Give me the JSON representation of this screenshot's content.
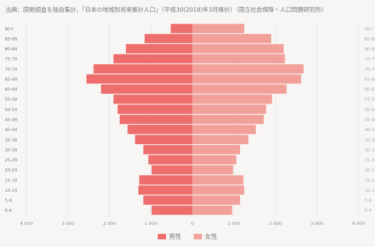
{
  "source_note": "出典：国勢調査を独自集計、「日本の地域別将来推計人口」（平成30(2018)年3月推計）（国立社会保障・人口問題研究所）",
  "chart_data": {
    "type": "bar",
    "orientation": "horizontal-population-pyramid",
    "categories": [
      "0-4",
      "5-9",
      "10-14",
      "15-19",
      "20-24",
      "25-29",
      "30-34",
      "35-39",
      "40-44",
      "45-49",
      "50-54",
      "55-59",
      "60-64",
      "65-69",
      "70-74",
      "75-79",
      "80-84",
      "85-89",
      "90+"
    ],
    "series": [
      {
        "name": "男性",
        "color": "#ee6e6e",
        "values": [
          980,
          1180,
          1300,
          1280,
          980,
          1060,
          1180,
          1380,
          1560,
          1750,
          1800,
          1900,
          2200,
          2550,
          2380,
          1900,
          1600,
          1150,
          520
        ]
      },
      {
        "name": "女性",
        "color": "#f2a19a",
        "values": [
          960,
          1150,
          1250,
          1230,
          980,
          1060,
          1150,
          1350,
          1530,
          1720,
          1780,
          1920,
          2270,
          2620,
          2680,
          2230,
          2200,
          1900,
          1250
        ]
      }
    ],
    "xlim": [
      -4000,
      4000
    ],
    "x_ticks": [
      -4000,
      -3000,
      -2000,
      -1000,
      0,
      1000,
      2000,
      3000,
      4000
    ],
    "x_tick_labels": [
      "4 000",
      "3 000",
      "2 000",
      "1 000",
      "0",
      "1 000",
      "2 000",
      "3 000",
      "4 000"
    ],
    "grid": "vertical",
    "legend_position": "bottom-center"
  }
}
